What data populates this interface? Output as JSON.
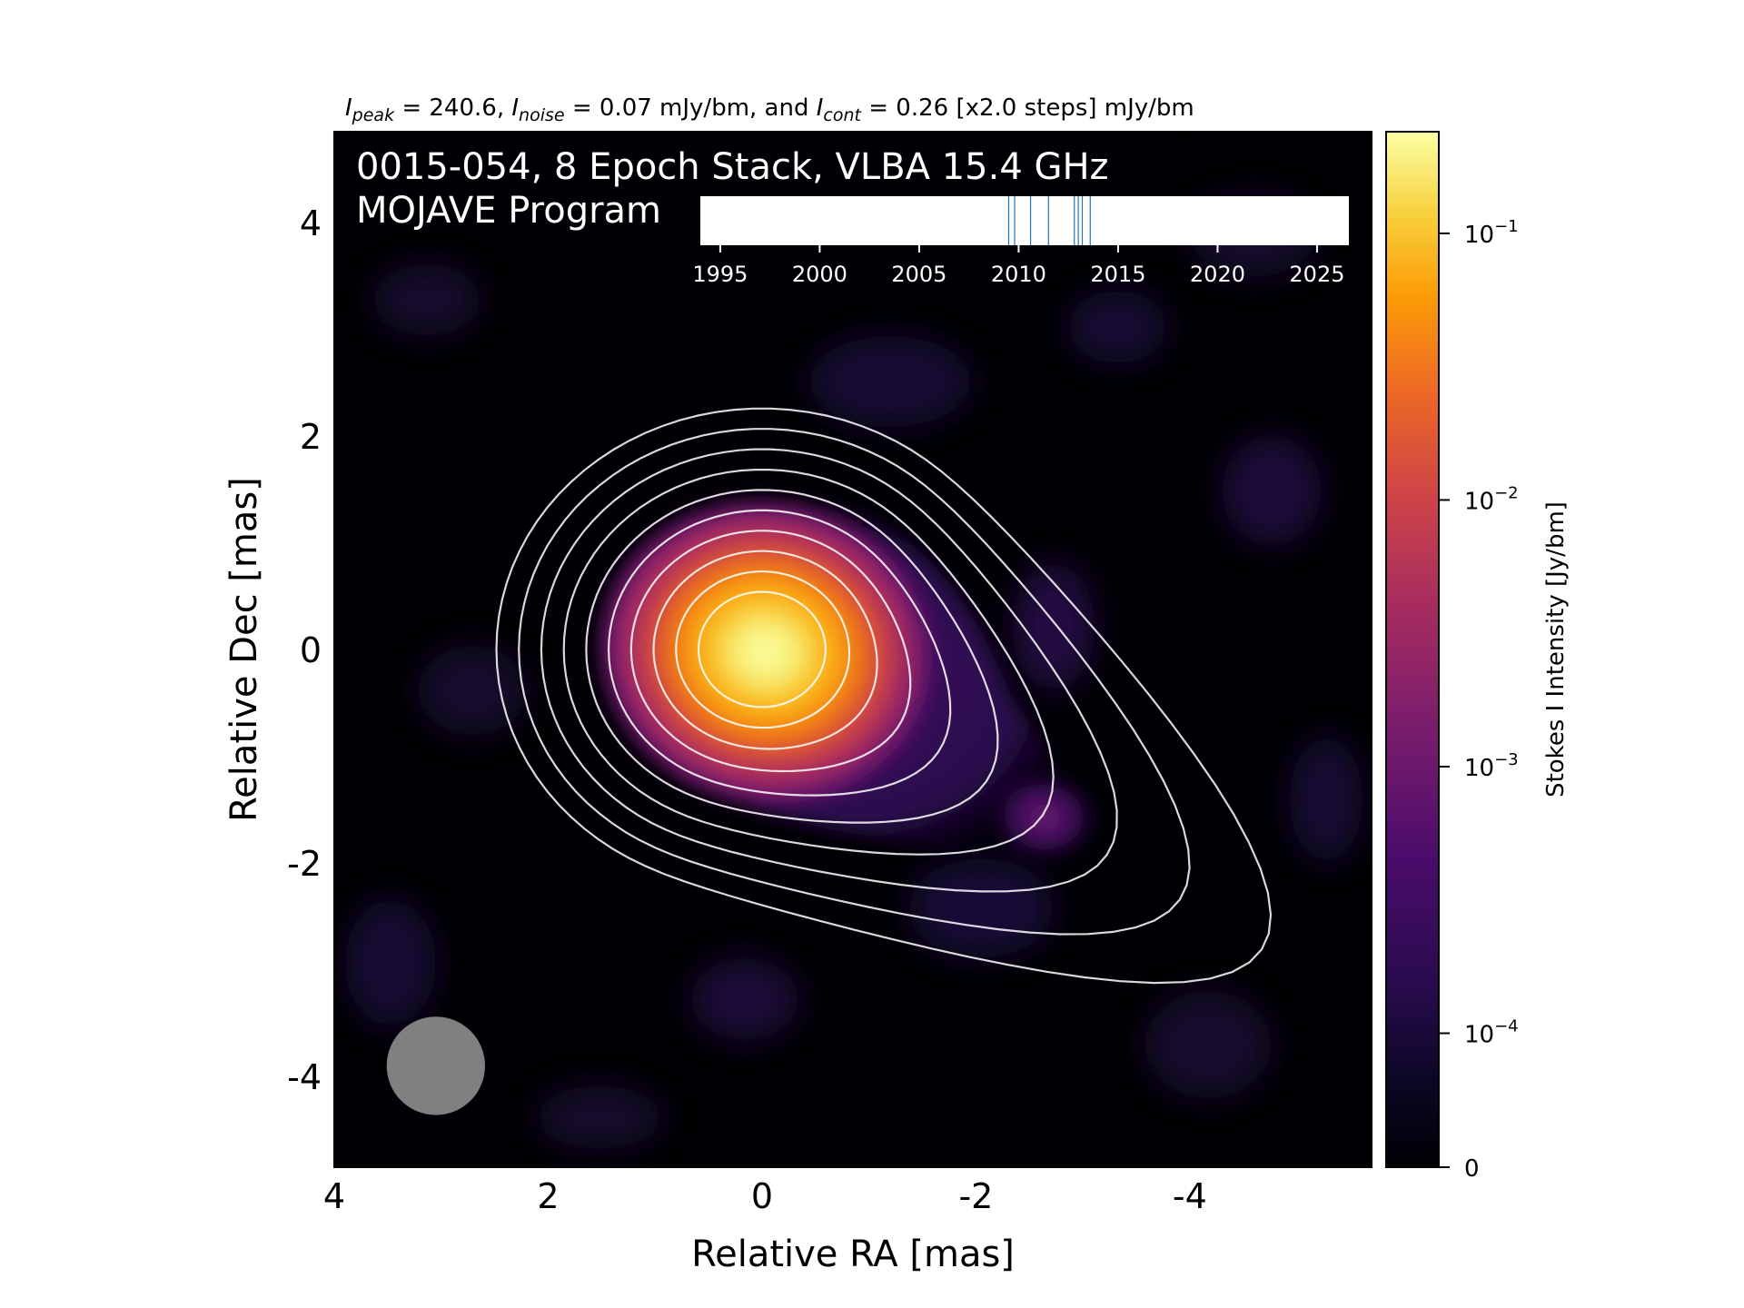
{
  "chart_data": {
    "type": "heatmap",
    "header": {
      "i": "I",
      "peak_sub": "peak",
      "peak_text": " = 240.6, ",
      "noise_sub": "noise",
      "noise_text": " = 0.07 mJy/bm, and ",
      "cont_sub": "cont",
      "cont_text": " = 0.26 [x2.0 steps] mJy/bm"
    },
    "title_line1": "0015-054, 8 Epoch Stack, VLBA 15.4 GHz",
    "title_line2": "MOJAVE Program",
    "xlabel": "Relative RA [mas]",
    "ylabel": "Relative Dec [mas]",
    "xlim": [
      4,
      -5.7
    ],
    "ylim": [
      -4.85,
      4.85
    ],
    "xticks": [
      4,
      2,
      0,
      -2,
      -4
    ],
    "xtick_labels": [
      "4",
      "2",
      "0",
      "-2",
      "-4"
    ],
    "yticks": [
      4,
      2,
      0,
      -2,
      -4
    ],
    "ytick_labels": [
      "4",
      "2",
      "0",
      "-2",
      "-4"
    ],
    "peak_jy_per_beam": 0.2406,
    "noise_mjy_per_beam": 0.07,
    "lowest_contour_mjy_per_beam": 0.26,
    "contour_step_factor": 2.0,
    "contour_count": 10,
    "core_position_mas": [
      0,
      0
    ],
    "jet_extension_mas": [
      -2.7,
      -1.7
    ],
    "beam_center_mas": [
      3.05,
      -3.9
    ],
    "beam_diameter_mas": 0.92,
    "colorbar": {
      "label": "Stokes I Intensity [Jy/bm]",
      "scale": "log",
      "colormap": "inferno",
      "tick_values": [
        0.1,
        0.01,
        0.001,
        0.0001,
        0
      ],
      "tick_bases": [
        "10",
        "10",
        "10",
        "10",
        "0"
      ],
      "tick_exponents": [
        "−1",
        "−2",
        "−3",
        "−4",
        ""
      ]
    },
    "epoch_timeline": {
      "xlim": [
        1994,
        2026.6
      ],
      "ticks": [
        1995,
        2000,
        2005,
        2010,
        2015,
        2020,
        2025
      ],
      "tick_labels": [
        "1995",
        "2000",
        "2005",
        "2010",
        "2015",
        "2020",
        "2025"
      ],
      "epochs": [
        2009.5,
        2009.8,
        2010.6,
        2011.5,
        2012.8,
        2013.0,
        2013.2,
        2013.6
      ],
      "epoch_color": "#1f77b4"
    },
    "colors": {
      "background": "#000004",
      "contour": "#ffffff",
      "beam": "#808080"
    }
  }
}
